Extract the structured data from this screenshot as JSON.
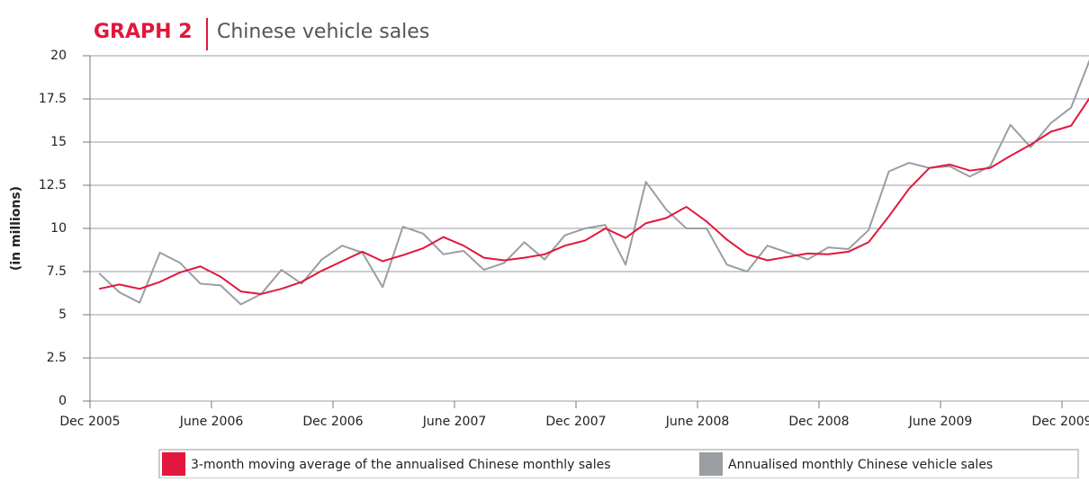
{
  "chart_data": {
    "type": "line",
    "title_prefix": "GRAPH 2",
    "title": "Chinese vehicle sales",
    "ylabel": "(in millions)",
    "categories": [
      "Dec 2005",
      null,
      null,
      null,
      null,
      null,
      "June 2006",
      null,
      null,
      null,
      null,
      null,
      "Dec 2006",
      null,
      null,
      null,
      null,
      null,
      "June 2007",
      null,
      null,
      null,
      null,
      null,
      "Dec 2007",
      null,
      null,
      null,
      null,
      null,
      "June 2008",
      null,
      null,
      null,
      null,
      null,
      "Dec 2008",
      null,
      null,
      null,
      null,
      null,
      "June 2009",
      null,
      null,
      null,
      null,
      null,
      "Dec 2009",
      null
    ],
    "series": [
      {
        "name": "3-month moving average of the annualised Chinese monthly sales",
        "color": "#e2173d",
        "values": [
          6.5,
          6.75,
          6.5,
          6.9,
          7.45,
          7.8,
          7.2,
          6.35,
          6.2,
          6.5,
          6.9,
          7.55,
          8.1,
          8.65,
          8.1,
          8.45,
          8.85,
          9.5,
          9.0,
          8.3,
          8.15,
          8.3,
          8.5,
          9.0,
          9.3,
          10.0,
          9.45,
          10.3,
          10.6,
          11.25,
          10.4,
          9.35,
          8.5,
          8.15,
          8.35,
          8.55,
          8.5,
          8.65,
          9.2,
          10.7,
          12.3,
          13.5,
          13.7,
          13.35,
          13.5,
          14.2,
          14.85,
          15.6,
          15.95,
          17.7
        ]
      },
      {
        "name": "Annualised monthly Chinese vehicle sales",
        "color": "#9a9ea3",
        "values": [
          7.4,
          6.3,
          5.7,
          8.6,
          8.0,
          6.8,
          6.7,
          5.6,
          6.2,
          7.6,
          6.8,
          8.2,
          9.0,
          8.6,
          6.6,
          10.1,
          9.7,
          8.5,
          8.7,
          7.6,
          8.0,
          9.2,
          8.2,
          9.6,
          10.0,
          10.2,
          7.9,
          12.7,
          11.1,
          10.0,
          10.0,
          7.9,
          7.5,
          9.0,
          8.6,
          8.2,
          8.9,
          8.8,
          9.9,
          13.3,
          13.8,
          13.5,
          13.6,
          13.0,
          13.6,
          16.0,
          14.7,
          16.1,
          17.0,
          20.0
        ]
      }
    ],
    "ylim": [
      0,
      20
    ],
    "yticks": [
      0,
      2.5,
      5,
      7.5,
      10,
      12.5,
      15,
      17.5,
      20
    ],
    "grid": true
  }
}
